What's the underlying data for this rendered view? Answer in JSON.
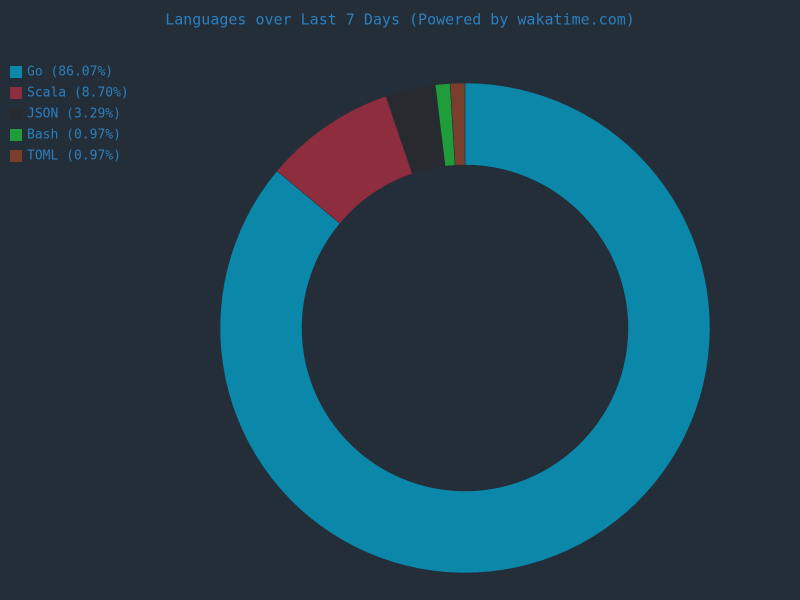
{
  "chart_data": {
    "type": "donut",
    "title": "Languages over Last 7 Days (Powered by wakatime.com)",
    "categories": [
      "Go (86.07%)",
      "Scala (8.70%)",
      "JSON (3.29%)",
      "Bash (0.97%)",
      "TOML (0.97%)"
    ],
    "values": [
      86.07,
      8.7,
      3.29,
      0.97,
      0.97
    ],
    "colors": [
      "#0b87aa",
      "#8e2d3d",
      "#272b30",
      "#1f9d3a",
      "#7a3e2c"
    ],
    "legend": "top-left"
  }
}
